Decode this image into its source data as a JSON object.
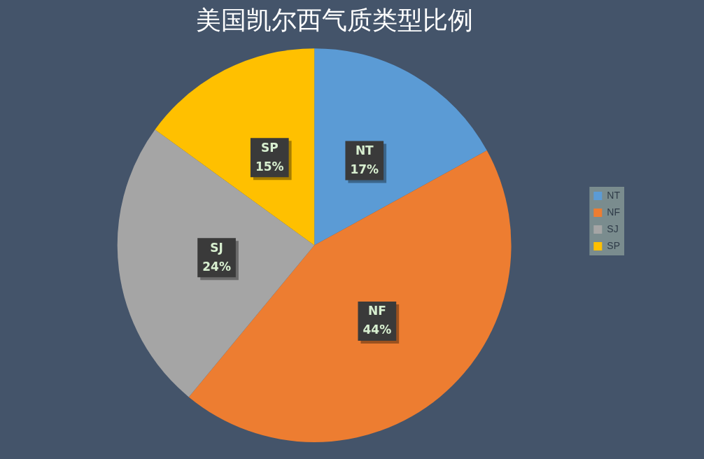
{
  "chart_data": {
    "type": "pie",
    "title": "美国凯尔西气质类型比例",
    "categories": [
      "NT",
      "NF",
      "SJ",
      "SP"
    ],
    "values": [
      17,
      44,
      24,
      15
    ],
    "colors": [
      "#5b9bd5",
      "#ed7d31",
      "#a5a5a5",
      "#ffc000"
    ],
    "value_labels": [
      "17%",
      "44%",
      "24%",
      "15%"
    ],
    "legend": "right"
  }
}
